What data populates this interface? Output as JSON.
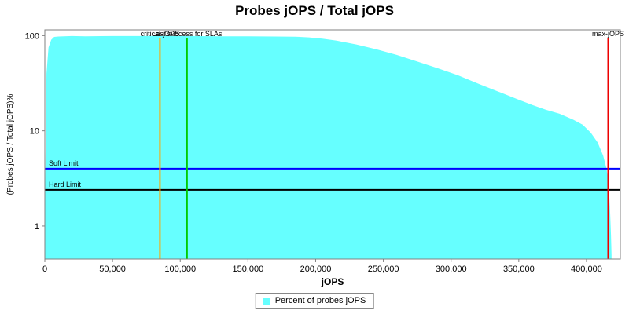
{
  "legend": {
    "label": "Percent of probes jOPS",
    "swatch_color": "#66FFFF"
  },
  "chart_data": {
    "type": "area",
    "title": "Probes jOPS / Total jOPS",
    "xlabel": "jOPS",
    "ylabel": "(Probes jOPS / Total jOPS)%",
    "x_scale": "linear",
    "y_scale": "log",
    "xlim": [
      0,
      425000
    ],
    "ylim": [
      0.45,
      115
    ],
    "x_ticks": [
      0,
      50000,
      100000,
      150000,
      200000,
      250000,
      300000,
      350000,
      400000
    ],
    "x_tick_labels": [
      "0",
      "50,000",
      "100,000",
      "150,000",
      "200,000",
      "250,000",
      "300,000",
      "350,000",
      "400,000"
    ],
    "y_ticks": [
      1,
      10,
      100
    ],
    "y_tick_labels": [
      "1",
      "10",
      "100"
    ],
    "grid": false,
    "legend_position": "bottom",
    "series": [
      {
        "name": "Percent of probes jOPS",
        "color": "#66FFFF",
        "points": [
          [
            0,
            0.5
          ],
          [
            1500,
            40
          ],
          [
            3000,
            75
          ],
          [
            5000,
            90
          ],
          [
            7000,
            96
          ],
          [
            10000,
            97
          ],
          [
            20000,
            98
          ],
          [
            30000,
            97.5
          ],
          [
            50000,
            98
          ],
          [
            70000,
            98
          ],
          [
            90000,
            98.5
          ],
          [
            110000,
            98
          ],
          [
            130000,
            97.5
          ],
          [
            150000,
            97.5
          ],
          [
            170000,
            97
          ],
          [
            185000,
            96.5
          ],
          [
            195000,
            95
          ],
          [
            205000,
            92
          ],
          [
            215000,
            88
          ],
          [
            230000,
            80
          ],
          [
            245000,
            71
          ],
          [
            260000,
            62
          ],
          [
            275000,
            53
          ],
          [
            290000,
            45
          ],
          [
            305000,
            38
          ],
          [
            320000,
            31
          ],
          [
            335000,
            25.5
          ],
          [
            350000,
            21
          ],
          [
            360000,
            18.5
          ],
          [
            370000,
            16.5
          ],
          [
            380000,
            15
          ],
          [
            390000,
            13
          ],
          [
            397000,
            11.5
          ],
          [
            403000,
            9.5
          ],
          [
            408000,
            7.5
          ],
          [
            412000,
            5.5
          ],
          [
            414500,
            4
          ],
          [
            416000,
            2.8
          ],
          [
            417000,
            1.6
          ],
          [
            417800,
            0.8
          ],
          [
            418200,
            0.5
          ]
        ]
      }
    ],
    "markers": {
      "vertical": [
        {
          "label": "critical-jOPS",
          "x": 85000,
          "color": "#FFA500"
        },
        {
          "label": "Last success for SLAs",
          "x": 105000,
          "color": "#00CC00"
        },
        {
          "label": "max-jOPS",
          "x": 416000,
          "color": "#EE0000"
        }
      ],
      "horizontal": [
        {
          "label": "Soft Limit",
          "y": 4.0,
          "color": "#0000FF"
        },
        {
          "label": "Hard Limit",
          "y": 2.4,
          "color": "#000000"
        }
      ]
    }
  }
}
